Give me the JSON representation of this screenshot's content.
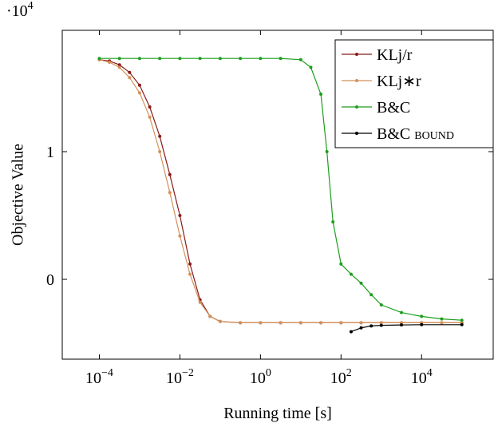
{
  "chart_data": {
    "type": "line",
    "y_label": "Objective Value",
    "x_label": "Running time [s]",
    "y_multiplier": {
      "base": "·10",
      "exponent": "4"
    },
    "x_scale": "log",
    "xlim": [
      1.2e-05,
      600000.0
    ],
    "ylim": [
      -0.625,
      1.95
    ],
    "xticks": [
      {
        "value": 0.0001,
        "label": "10",
        "exponent": "−4"
      },
      {
        "value": 0.01,
        "label": "10",
        "exponent": "−2"
      },
      {
        "value": 1,
        "label": "10",
        "exponent": "0"
      },
      {
        "value": 100,
        "label": "10",
        "exponent": "2"
      },
      {
        "value": 10000.0,
        "label": "10",
        "exponent": "4"
      }
    ],
    "yticks": [
      0,
      1
    ],
    "legend": "upper right",
    "series": [
      {
        "name": "KLj/r",
        "color": "#8b1a1a",
        "x": [
          0.0001,
          0.000178,
          0.000316,
          0.000562,
          0.001,
          0.00178,
          0.00316,
          0.00562,
          0.01,
          0.0178,
          0.0316,
          0.0562,
          0.1,
          0.316,
          1,
          3.16,
          10,
          31.6,
          100,
          316,
          1000,
          3160,
          10000.0,
          31600.0,
          100000.0
        ],
        "values": [
          1.72,
          1.71,
          1.68,
          1.62,
          1.52,
          1.35,
          1.12,
          0.82,
          0.5,
          0.12,
          -0.16,
          -0.29,
          -0.33,
          -0.34,
          -0.34,
          -0.34,
          -0.34,
          -0.34,
          -0.34,
          -0.34,
          -0.34,
          -0.34,
          -0.34,
          -0.34,
          -0.34
        ]
      },
      {
        "name": "KLj∗r",
        "color": "#d2915a",
        "x": [
          0.0001,
          0.000178,
          0.000316,
          0.000562,
          0.001,
          0.00178,
          0.00316,
          0.00562,
          0.01,
          0.0178,
          0.0316,
          0.0562,
          0.1,
          0.316,
          1,
          3.16,
          10,
          31.6,
          100,
          316,
          1000,
          3160,
          10000.0,
          31600.0,
          100000.0
        ],
        "values": [
          1.72,
          1.7,
          1.66,
          1.58,
          1.46,
          1.27,
          1.0,
          0.68,
          0.34,
          0.04,
          -0.18,
          -0.29,
          -0.33,
          -0.34,
          -0.34,
          -0.34,
          -0.34,
          -0.34,
          -0.34,
          -0.34,
          -0.34,
          -0.34,
          -0.34,
          -0.34,
          -0.34
        ]
      },
      {
        "name": "B&C",
        "color": "#1e9e1e",
        "x": [
          0.0001,
          0.000316,
          0.001,
          0.00316,
          0.01,
          0.0316,
          0.1,
          0.316,
          1,
          3.16,
          10,
          17.8,
          31.6,
          44.7,
          63.1,
          100,
          178,
          316,
          562,
          1000,
          3160,
          10000.0,
          31600.0,
          100000.0
        ],
        "values": [
          1.73,
          1.73,
          1.73,
          1.73,
          1.73,
          1.73,
          1.73,
          1.73,
          1.73,
          1.73,
          1.72,
          1.66,
          1.45,
          1.0,
          0.45,
          0.12,
          0.04,
          -0.03,
          -0.12,
          -0.2,
          -0.26,
          -0.29,
          -0.31,
          -0.32
        ]
      },
      {
        "name": "B&C bound",
        "color": "#000000",
        "x": [
          178,
          316,
          562,
          1000,
          3160,
          10000.0,
          100000.0
        ],
        "values": [
          -0.41,
          -0.38,
          -0.365,
          -0.36,
          -0.357,
          -0.355,
          -0.355
        ]
      }
    ]
  }
}
